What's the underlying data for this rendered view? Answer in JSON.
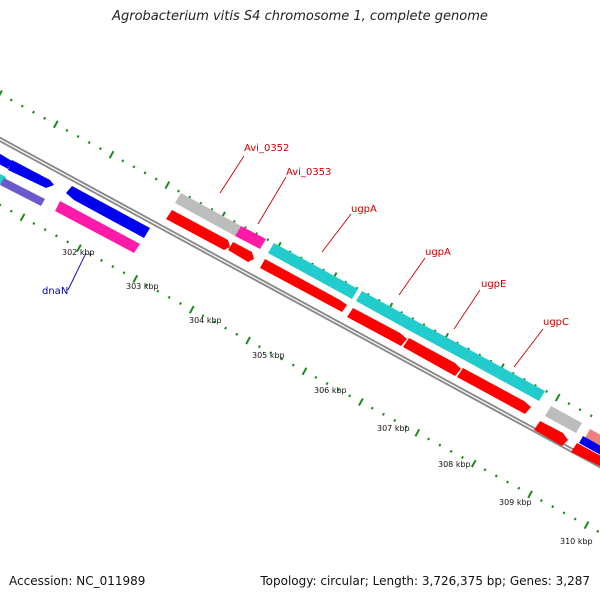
{
  "title": "Agrobacterium vitis S4 chromosome 1, complete genome",
  "accession": "Accession: NC_011989",
  "stats": "Topology: circular; Length: 3,726,375 bp; Genes: 3,287",
  "scale_labels": [
    "302 kbp",
    "303 kbp",
    "304 kbp",
    "305 kbp",
    "306 kbp",
    "307 kbp",
    "308 kbp",
    "309 kbp",
    "310 kbp"
  ],
  "gene_labels": [
    {
      "text": "Avi_0352",
      "color": "#cc0000"
    },
    {
      "text": "Avi_0353",
      "color": "#cc0000"
    },
    {
      "text": "ugpA",
      "color": "#cc0000"
    },
    {
      "text": "ugpA",
      "color": "#cc0000"
    },
    {
      "text": "ugpE",
      "color": "#cc0000"
    },
    {
      "text": "ugpC",
      "color": "#cc0000"
    },
    {
      "text": "dnaN",
      "color": "#0000aa"
    }
  ],
  "colors": {
    "backbone": "#8a8a8a",
    "tick": "#1b8a1b",
    "gene_cds": "#ff0000",
    "gene_cyan": "#22cccc",
    "gene_blue": "#0000ee",
    "gene_magenta": "#ff1aa8",
    "gene_grey": "#bdbdbd",
    "gene_purple": "#6a5acd"
  }
}
